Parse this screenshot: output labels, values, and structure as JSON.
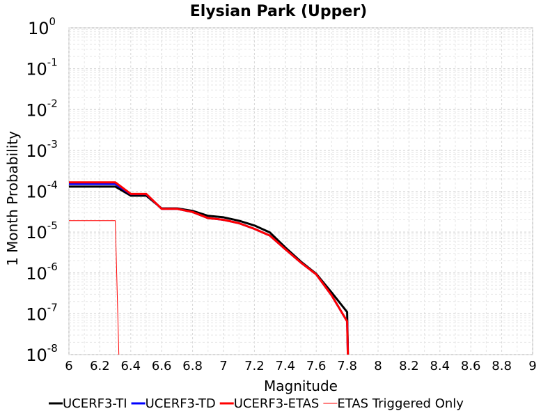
{
  "chart_data": {
    "type": "line",
    "title": "Elysian Park (Upper)",
    "xlabel": "Magnitude",
    "ylabel": "1 Month Probability",
    "xlim": [
      6,
      9
    ],
    "ylim": [
      1e-08,
      1
    ],
    "yscale": "log",
    "grid": true,
    "legend_position": "bottom",
    "x_ticks": [
      "6",
      "6.2",
      "6.4",
      "6.6",
      "6.8",
      "7",
      "7.2",
      "7.4",
      "7.6",
      "7.8",
      "8",
      "8.2",
      "8.4",
      "8.6",
      "8.8",
      "9"
    ],
    "y_ticks": [
      {
        "base": "10",
        "exp": "0"
      },
      {
        "base": "10",
        "exp": "-1"
      },
      {
        "base": "10",
        "exp": "-2"
      },
      {
        "base": "10",
        "exp": "-3"
      },
      {
        "base": "10",
        "exp": "-4"
      },
      {
        "base": "10",
        "exp": "-5"
      },
      {
        "base": "10",
        "exp": "-6"
      },
      {
        "base": "10",
        "exp": "-7"
      },
      {
        "base": "10",
        "exp": "-8"
      }
    ],
    "series": [
      {
        "name": "UCERF3-TI",
        "color": "#000000",
        "width": 3,
        "points": [
          [
            6.0,
            0.00013
          ],
          [
            6.1,
            0.00013
          ],
          [
            6.2,
            0.00013
          ],
          [
            6.3,
            0.00013
          ],
          [
            6.4,
            7.8e-05
          ],
          [
            6.5,
            7.8e-05
          ],
          [
            6.6,
            3.8e-05
          ],
          [
            6.7,
            3.8e-05
          ],
          [
            6.8,
            3.3e-05
          ],
          [
            6.9,
            2.5e-05
          ],
          [
            7.0,
            2.3e-05
          ],
          [
            7.1,
            1.9e-05
          ],
          [
            7.2,
            1.45e-05
          ],
          [
            7.3,
            9.8e-06
          ],
          [
            7.4,
            4.2e-06
          ],
          [
            7.5,
            1.9e-06
          ],
          [
            7.6,
            9.5e-07
          ],
          [
            7.7,
            3.3e-07
          ],
          [
            7.8,
            1.1e-07
          ],
          [
            7.81,
            1e-09
          ]
        ]
      },
      {
        "name": "UCERF3-TD",
        "color": "#0000ff",
        "width": 3,
        "points": [
          [
            6.0,
            0.00015
          ],
          [
            6.1,
            0.00015
          ],
          [
            6.2,
            0.00015
          ],
          [
            6.3,
            0.00015
          ],
          [
            6.4,
            8.5e-05
          ],
          [
            6.5,
            8.5e-05
          ],
          [
            6.6,
            3.7e-05
          ],
          [
            6.7,
            3.7e-05
          ],
          [
            6.8,
            3.1e-05
          ],
          [
            6.9,
            2.2e-05
          ],
          [
            7.0,
            2e-05
          ],
          [
            7.1,
            1.65e-05
          ],
          [
            7.2,
            1.2e-05
          ],
          [
            7.3,
            8.2e-06
          ],
          [
            7.4,
            3.8e-06
          ],
          [
            7.5,
            1.8e-06
          ],
          [
            7.6,
            9.2e-07
          ],
          [
            7.7,
            2.8e-07
          ],
          [
            7.8,
            6.5e-08
          ],
          [
            7.81,
            1e-09
          ]
        ]
      },
      {
        "name": "UCERF3-ETAS",
        "color": "#ff0000",
        "width": 3,
        "points": [
          [
            6.0,
            0.000165
          ],
          [
            6.1,
            0.000165
          ],
          [
            6.2,
            0.000165
          ],
          [
            6.3,
            0.000165
          ],
          [
            6.4,
            8.6e-05
          ],
          [
            6.5,
            8.6e-05
          ],
          [
            6.6,
            3.7e-05
          ],
          [
            6.7,
            3.7e-05
          ],
          [
            6.8,
            3.1e-05
          ],
          [
            6.9,
            2.2e-05
          ],
          [
            7.0,
            2e-05
          ],
          [
            7.1,
            1.65e-05
          ],
          [
            7.2,
            1.2e-05
          ],
          [
            7.3,
            8.2e-06
          ],
          [
            7.4,
            3.8e-06
          ],
          [
            7.5,
            1.8e-06
          ],
          [
            7.6,
            9.2e-07
          ],
          [
            7.7,
            2.8e-07
          ],
          [
            7.8,
            6.5e-08
          ],
          [
            7.81,
            1e-09
          ]
        ]
      },
      {
        "name": "ETAS Triggered Only",
        "color": "#ff0000",
        "width": 1,
        "points": [
          [
            6.0,
            1.9e-05
          ],
          [
            6.1,
            1.9e-05
          ],
          [
            6.2,
            1.9e-05
          ],
          [
            6.3,
            1.9e-05
          ],
          [
            6.33,
            1e-09
          ]
        ]
      }
    ]
  }
}
